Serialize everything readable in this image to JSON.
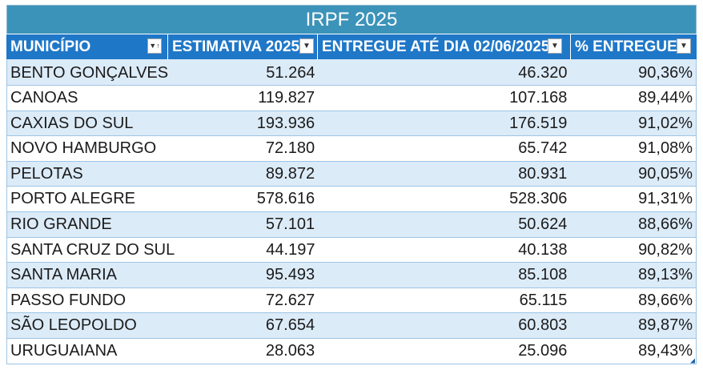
{
  "title": "IRPF 2025",
  "headers": [
    "MUNICÍPIO",
    "ESTIMATIVA 2025",
    "ENTREGUE ATÉ DIA 02/06/2025",
    "% ENTREGUE"
  ],
  "rows": [
    [
      "BENTO GONÇALVES",
      "51.264",
      "46.320",
      "90,36%"
    ],
    [
      "CANOAS",
      "119.827",
      "107.168",
      "89,44%"
    ],
    [
      "CAXIAS DO SUL",
      "193.936",
      "176.519",
      "91,02%"
    ],
    [
      "NOVO HAMBURGO",
      "72.180",
      "65.742",
      "91,08%"
    ],
    [
      "PELOTAS",
      "89.872",
      "80.931",
      "90,05%"
    ],
    [
      "PORTO ALEGRE",
      "578.616",
      "528.306",
      "91,31%"
    ],
    [
      "RIO GRANDE",
      "57.101",
      "50.624",
      "88,66%"
    ],
    [
      "SANTA CRUZ DO SUL",
      "44.197",
      "40.138",
      "90,82%"
    ],
    [
      "SANTA MARIA",
      "95.493",
      "85.108",
      "89,13%"
    ],
    [
      "PASSO FUNDO",
      "72.627",
      "65.115",
      "89,66%"
    ],
    [
      "SÃO LEOPOLDO",
      "67.654",
      "60.803",
      "89,87%"
    ],
    [
      "URUGUAIANA",
      "28.063",
      "25.096",
      "89,43%"
    ]
  ],
  "colors": {
    "title_bg": "#3c93b9",
    "header_bg": "#1f77c8",
    "band": "#dcebf8"
  },
  "icons": {
    "sort_filter": "sort-filter-icon",
    "dropdown": "dropdown-arrow-icon"
  }
}
